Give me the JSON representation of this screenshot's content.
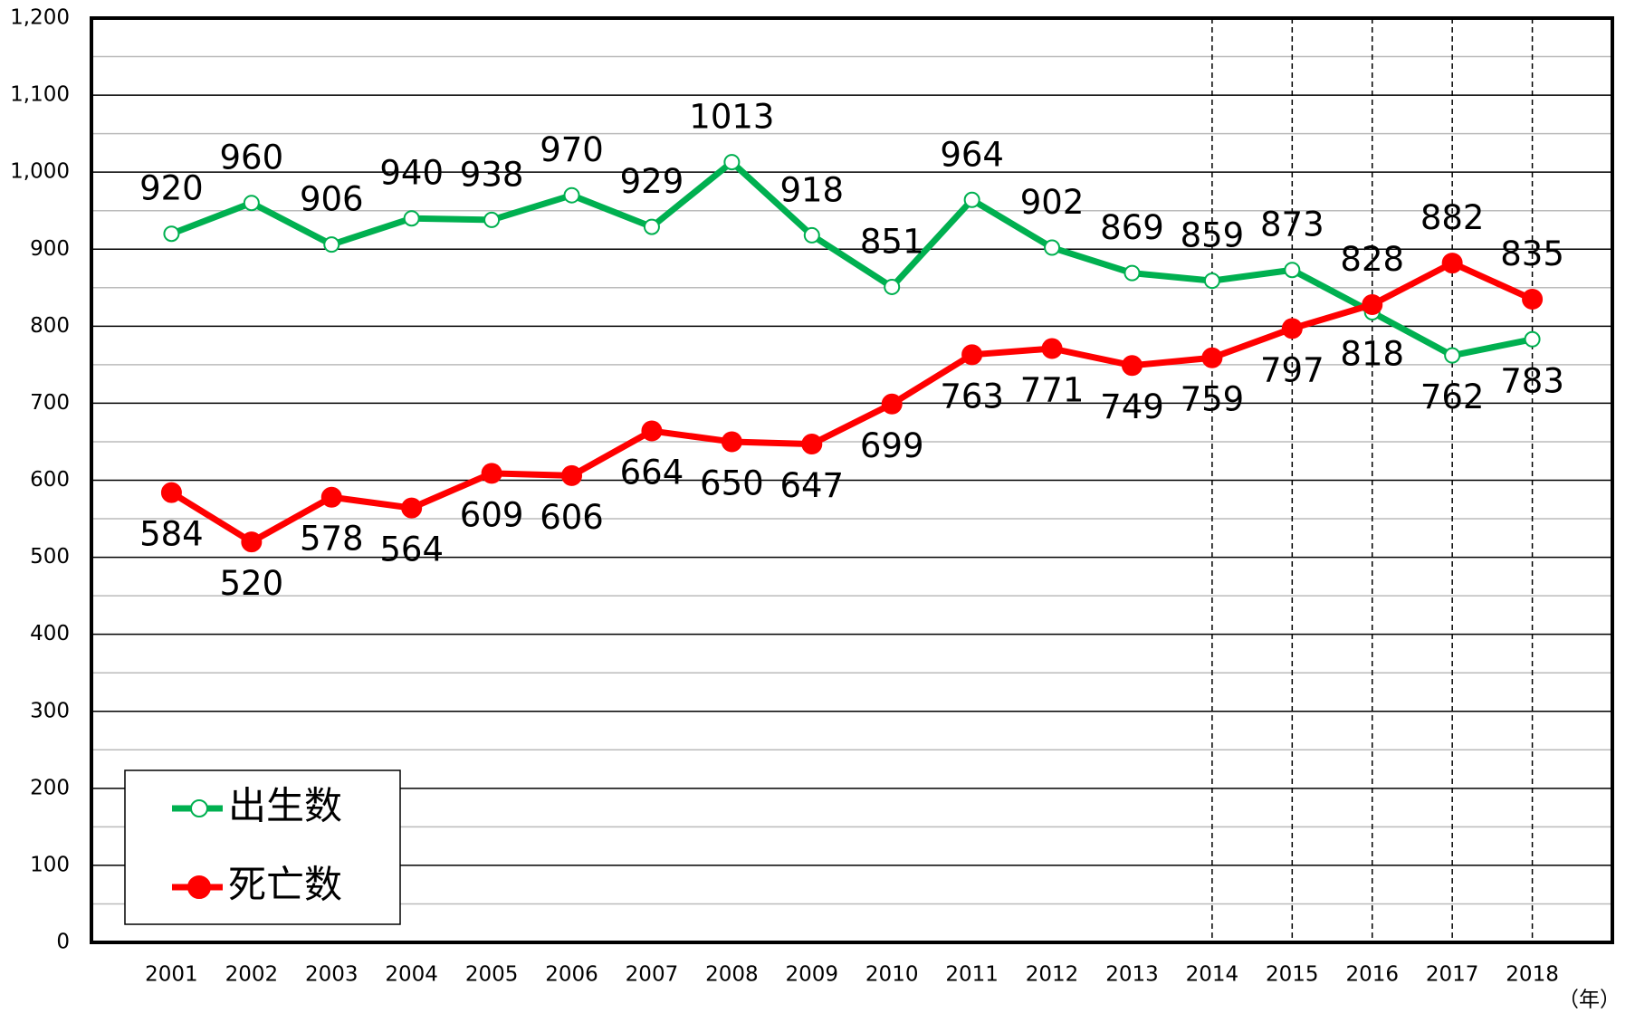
{
  "chart_data": {
    "type": "line",
    "x_label": "（年）",
    "categories": [
      "2001",
      "2002",
      "2003",
      "2004",
      "2005",
      "2006",
      "2007",
      "2008",
      "2009",
      "2010",
      "2011",
      "2012",
      "2013",
      "2014",
      "2015",
      "2016",
      "2017",
      "2018"
    ],
    "series": [
      {
        "name": "出生数",
        "color": "#00b050",
        "marker": "open",
        "values": [
          920,
          960,
          906,
          940,
          938,
          970,
          929,
          1013,
          918,
          851,
          964,
          902,
          869,
          859,
          873,
          818,
          762,
          783
        ],
        "label_positions": [
          "above",
          "above",
          "above",
          "above",
          "above",
          "above",
          "above",
          "above",
          "above",
          "above",
          "above",
          "above",
          "above",
          "above",
          "above",
          "below",
          "below",
          "below"
        ]
      },
      {
        "name": "死亡数",
        "color": "#ff0000",
        "marker": "filled",
        "values": [
          584,
          520,
          578,
          564,
          609,
          606,
          664,
          650,
          647,
          699,
          763,
          771,
          749,
          759,
          797,
          828,
          882,
          835
        ],
        "label_positions": [
          "below",
          "below",
          "below",
          "below",
          "below",
          "below",
          "below",
          "below",
          "below",
          "below",
          "below",
          "below",
          "below",
          "below",
          "below",
          "above",
          "above",
          "above"
        ]
      }
    ],
    "ylim": [
      0,
      1200
    ],
    "yticks": [
      0,
      100,
      200,
      300,
      400,
      500,
      600,
      700,
      800,
      900,
      {
        "value": 1000,
        "label": "1,000"
      },
      {
        "value": 1100,
        "label": "1,100"
      },
      {
        "value": 1200,
        "label": "1,200"
      }
    ],
    "yminorticks": [
      50,
      150,
      250,
      350,
      450,
      550,
      650,
      750,
      850,
      950,
      1050,
      1150
    ],
    "grid": true,
    "vertical_dashed_lines": [
      "2014",
      "2015",
      "2016",
      "2017",
      "2018"
    ],
    "legend": "lower left"
  }
}
